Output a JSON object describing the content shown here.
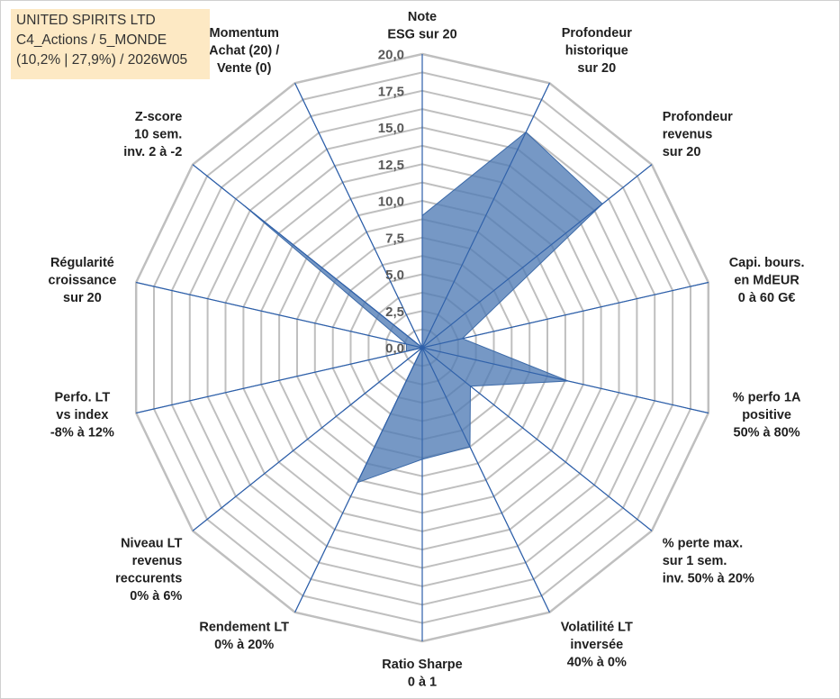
{
  "header": {
    "line1": "UNITED SPIRITS LTD",
    "line2": "C4_Actions / 5_MONDE",
    "line3": "(10,2% | 27,9%) / 2026W05"
  },
  "colors": {
    "grid": "#bfbfbf",
    "spoke": "#2e5fa8",
    "fill": "#4f7bb5",
    "title_bg": "#fde9c4"
  },
  "chart_data": {
    "type": "radar",
    "title": "",
    "rmin": 0,
    "rmax": 20,
    "tick_step": 1.25,
    "tick_labels": [
      "0,0",
      "2,5",
      "5,0",
      "7,5",
      "10,0",
      "12,5",
      "15,0",
      "17,5",
      "20,0"
    ],
    "tick_values": [
      0,
      2.5,
      5,
      7.5,
      10,
      12.5,
      15,
      17.5,
      20
    ],
    "axes": [
      {
        "label": [
          "Note",
          "ESG sur 20"
        ],
        "value": 9
      },
      {
        "label": [
          "Profondeur",
          "historique",
          "sur 20"
        ],
        "value": 16.3
      },
      {
        "label": [
          "Profondeur",
          "revenus",
          "sur 20"
        ],
        "value": 15.7
      },
      {
        "label": [
          "Capi. bours.",
          "en MdEUR",
          "0 à 60 G€"
        ],
        "value": 2.8
      },
      {
        "label": [
          "% perfo 1A",
          "positive",
          "50% à 80%"
        ],
        "value": 10.2
      },
      {
        "label": [
          "% perte max.",
          "sur 1 sem.",
          "inv. 50% à 20%"
        ],
        "value": 4.2
      },
      {
        "label": [
          "Volatilité LT",
          "inversée",
          "40% à 0%"
        ],
        "value": 7.5
      },
      {
        "label": [
          "Ratio Sharpe",
          "0 à 1"
        ],
        "value": 7.6
      },
      {
        "label": [
          "Rendement LT",
          "0% à 20%"
        ],
        "value": 10.2
      },
      {
        "label": [
          "Niveau LT",
          "revenus",
          "reccurents",
          "0% à 6%"
        ],
        "value": 0
      },
      {
        "label": [
          "Perfo. LT",
          "vs index",
          "-8% à 12%"
        ],
        "value": 1.1
      },
      {
        "label": [
          "Régularité",
          "croissance",
          "sur 20"
        ],
        "value": 1.1
      },
      {
        "label": [
          "Z-score",
          "10 sem.",
          "inv. 2 à -2"
        ],
        "value": 15.6
      },
      {
        "label": [
          "Momentum",
          "Achat (20) /",
          "Vente (0)"
        ],
        "value": 0
      }
    ]
  }
}
